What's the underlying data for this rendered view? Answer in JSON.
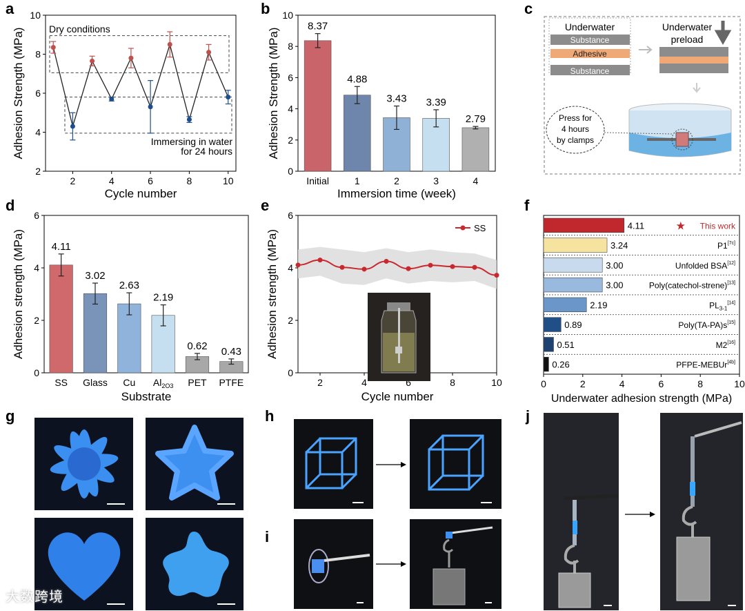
{
  "panel_labels": {
    "a": "a",
    "b": "b",
    "c": "c",
    "d": "d",
    "e": "e",
    "f": "f",
    "g": "g",
    "h": "h",
    "i": "i",
    "j": "j"
  },
  "chart_data": [
    {
      "id": "a",
      "type": "line",
      "xlabel": "Cycle number",
      "ylabel": "Adhesion Strength (MPa)",
      "xlim": [
        0.6,
        10.4
      ],
      "ylim": [
        2,
        10
      ],
      "xticks": [
        2,
        4,
        6,
        8,
        10
      ],
      "yticks": [
        2,
        4,
        6,
        8,
        10
      ],
      "x": [
        1,
        2,
        3,
        4,
        5,
        6,
        7,
        8,
        9,
        10
      ],
      "values": [
        8.35,
        4.3,
        7.65,
        5.7,
        7.8,
        5.3,
        8.5,
        4.65,
        8.1,
        5.8
      ],
      "errors": [
        0.3,
        0.7,
        0.25,
        0.1,
        0.5,
        1.35,
        0.65,
        0.15,
        0.4,
        0.35
      ],
      "dry_color": "#c0504d",
      "wet_color": "#1f4e8c",
      "annotations": {
        "dry": "Dry conditions",
        "wet_line1": "Immersing in water",
        "wet_line2": "for 24 hours"
      }
    },
    {
      "id": "b",
      "type": "bar",
      "xlabel": "Immersion time (week)",
      "ylabel": "Adhesion Strength (MPa)",
      "ylim": [
        0,
        10
      ],
      "yticks": [
        0,
        2,
        4,
        6,
        8,
        10
      ],
      "categories": [
        "Initial",
        "1",
        "2",
        "3",
        "4"
      ],
      "values": [
        8.37,
        4.88,
        3.43,
        3.39,
        2.79
      ],
      "labels": [
        "8.37",
        "4.88",
        "3.43",
        "3.39",
        "2.79"
      ],
      "errors": [
        0.45,
        0.55,
        0.75,
        0.55,
        0.08
      ],
      "colors": [
        "#c9646b",
        "#6e86ab",
        "#8fb1d6",
        "#c6dff0",
        "#b0b0b0"
      ]
    },
    {
      "id": "d",
      "type": "bar",
      "xlabel": "Substrate",
      "ylabel": "Adhesion strength (MPa)",
      "ylim": [
        0,
        6
      ],
      "yticks": [
        0,
        2,
        4,
        6
      ],
      "categories": [
        "SS",
        "Glass",
        "Cu",
        "Al",
        "PET",
        "PTFE"
      ],
      "category_subscripts": [
        "",
        "",
        "",
        "2O3",
        "",
        ""
      ],
      "values": [
        4.11,
        3.02,
        2.63,
        2.19,
        0.62,
        0.43
      ],
      "labels": [
        "4.11",
        "3.02",
        "2.63",
        "2.19",
        "0.62",
        "0.43"
      ],
      "errors": [
        0.42,
        0.4,
        0.42,
        0.4,
        0.12,
        0.1
      ],
      "colors": [
        "#d0696c",
        "#7a93b8",
        "#8fb3da",
        "#c6dff0",
        "#a8a8a8",
        "#a8a8a8"
      ]
    },
    {
      "id": "e",
      "type": "line",
      "xlabel": "Cycle number",
      "ylabel": "Adhesion strength (MPa)",
      "xlim": [
        1,
        10
      ],
      "ylim": [
        0,
        6
      ],
      "xticks": [
        2,
        4,
        6,
        8,
        10
      ],
      "yticks": [
        0,
        2,
        4,
        6
      ],
      "x": [
        1,
        2,
        3,
        4,
        5,
        6,
        7,
        8,
        9,
        10
      ],
      "values": [
        4.11,
        4.3,
        4.02,
        3.95,
        4.25,
        3.97,
        4.1,
        4.05,
        4.02,
        3.72
      ],
      "band_upper": [
        4.7,
        4.8,
        4.7,
        4.6,
        4.75,
        4.6,
        4.7,
        4.6,
        4.55,
        4.3
      ],
      "band_lower": [
        3.6,
        3.7,
        3.4,
        3.35,
        3.6,
        3.4,
        3.5,
        3.45,
        3.5,
        3.2
      ],
      "legend": "SS",
      "color": "#c9282d"
    },
    {
      "id": "f",
      "type": "bar",
      "xlabel": "Underwater adhesion strength (MPa)",
      "xlim": [
        0,
        10
      ],
      "xticks": [
        0,
        2,
        4,
        6,
        8,
        10
      ],
      "categories": [
        "This work",
        "P1",
        "Unfolded BSA",
        "Poly(catechol-strene)",
        "PL",
        "Poly(TA-PA)s",
        "M2",
        "PFPE-MEBUr"
      ],
      "subscripts": [
        "",
        "",
        "",
        "",
        "3-1",
        "",
        "",
        ""
      ],
      "refs": [
        "",
        "[7c]",
        "[12]",
        "[13]",
        "[14]",
        "[15]",
        "[16]",
        "[4b]"
      ],
      "values": [
        4.11,
        3.24,
        3.0,
        3.0,
        2.19,
        0.89,
        0.51,
        0.26
      ],
      "labels": [
        "4.11",
        "3.24",
        "3.00",
        "3.00",
        "2.19",
        "0.89",
        "0.51",
        "0.26"
      ],
      "colors": [
        "#c0282d",
        "#f7e3a0",
        "#c8dbee",
        "#9ab9de",
        "#6a96c9",
        "#1f4f86",
        "#1d4272",
        "#111111"
      ],
      "star_color": "#c0282d"
    }
  ],
  "diagram_c": {
    "underwater": "Underwater",
    "substance_top": "Substance",
    "adhesive": "Adhesive",
    "substance_bottom": "Substance",
    "preload_line1": "Underwater",
    "preload_line2": "preload",
    "press_line1": "Press for",
    "press_line2": "4 hours",
    "press_line3": "by clamps",
    "adhesive_color": "#f0a876",
    "substance_color": "#8c8c8c"
  },
  "watermark": "大数跨境"
}
